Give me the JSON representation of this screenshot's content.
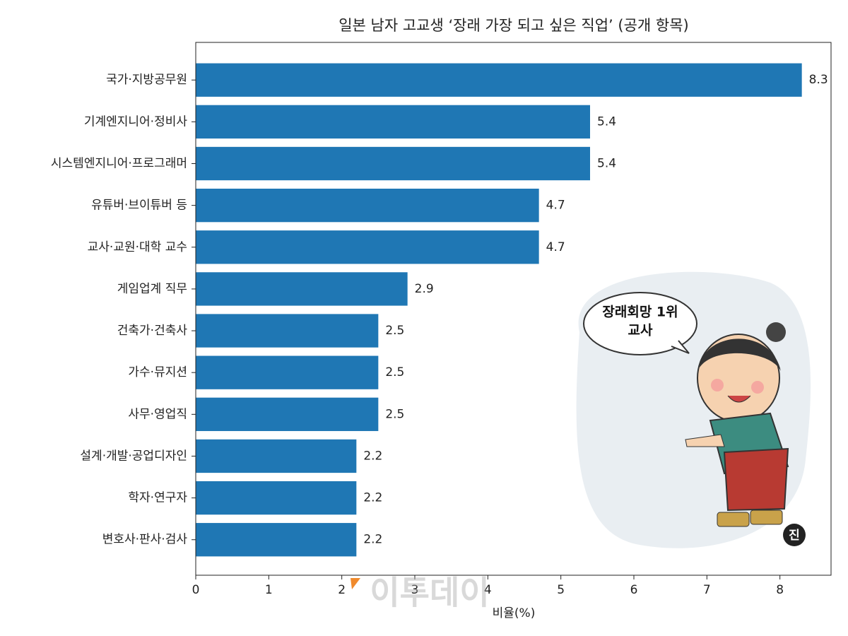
{
  "chart_data": {
    "type": "barh",
    "title": "일본 남자 고교생 ‘장래 가장 되고 싶은 직업’ (공개 항목)",
    "xlabel": "비율(%)",
    "categories": [
      "국가·지방공무원",
      "기계엔지니어·정비사",
      "시스템엔지니어·프로그래머",
      "유튜버·브이튜버 등",
      "교사·교원·대학 교수",
      "게임업계 직무",
      "건축가·건축사",
      "가수·뮤지션",
      "사무·영업직",
      "설계·개발·공업디자인",
      "학자·연구자",
      "변호사·판사·검사"
    ],
    "values": [
      8.3,
      5.4,
      5.4,
      4.7,
      4.7,
      2.9,
      2.5,
      2.5,
      2.5,
      2.2,
      2.2,
      2.2
    ],
    "color": "#1f77b4",
    "xlim": [
      0,
      8.7
    ],
    "xticks": [
      0,
      1,
      2,
      3,
      4,
      5,
      6,
      7,
      8
    ],
    "annotations": [
      "장래회망 1위",
      "교사",
      "진",
      "이투데이"
    ]
  }
}
